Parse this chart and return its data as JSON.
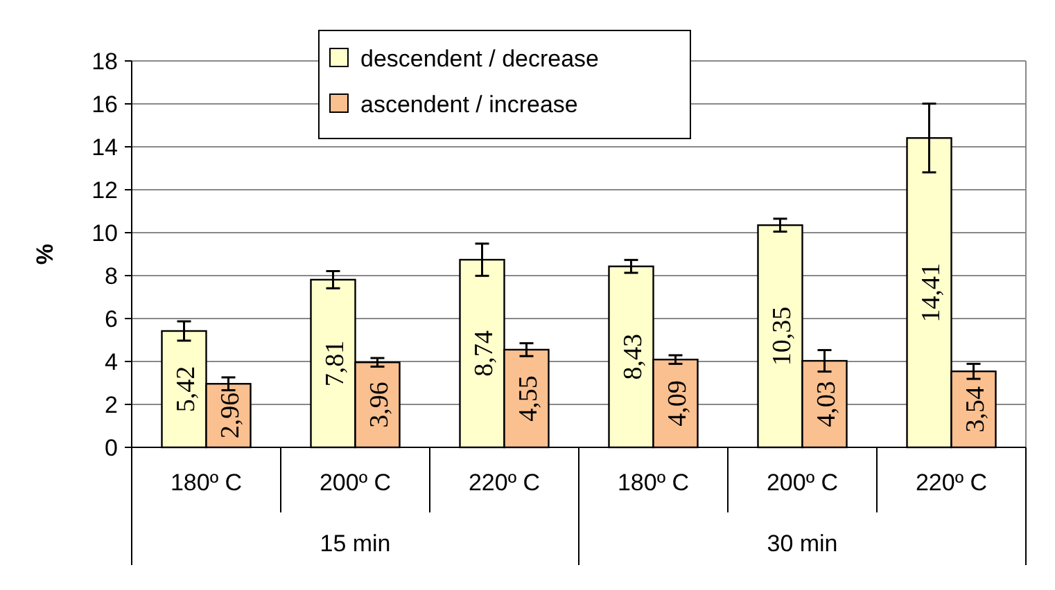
{
  "chart_data": {
    "type": "bar",
    "ylabel": "%",
    "categories": [
      "180º C",
      "200º C",
      "220º C",
      "180º C",
      "200º C",
      "220º C"
    ],
    "annotations": [
      "15 min",
      "30 min"
    ],
    "series": [
      {
        "name": "descendent / decrease",
        "color": "#ffffcc",
        "values": [
          5.42,
          7.81,
          8.74,
          8.43,
          10.35,
          14.41
        ],
        "errors": [
          0.45,
          0.4,
          0.75,
          0.3,
          0.3,
          1.6
        ],
        "value_labels": [
          "5,42",
          "7,81",
          "8,74",
          "8,43",
          "10,35",
          "14,41"
        ]
      },
      {
        "name": "ascendent / increase",
        "color": "#fac090",
        "values": [
          2.96,
          3.96,
          4.55,
          4.09,
          4.03,
          3.54
        ],
        "errors": [
          0.3,
          0.2,
          0.3,
          0.2,
          0.5,
          0.35
        ],
        "value_labels": [
          "2,96",
          "3,96",
          "4,55",
          "4,09",
          "4,03",
          "3,54"
        ]
      }
    ],
    "ylim": [
      0,
      18
    ],
    "yticks": [
      0,
      2,
      4,
      6,
      8,
      10,
      12,
      14,
      16,
      18
    ],
    "grid": "y",
    "legend": "top"
  }
}
